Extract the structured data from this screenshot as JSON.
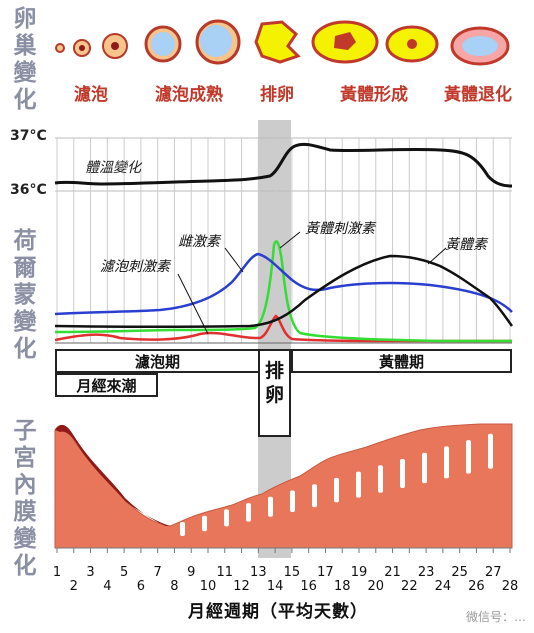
{
  "side_labels": {
    "ovary": "卵巢變化",
    "hormone": "荷爾蒙變化",
    "endometrium": "子宮內膜變化"
  },
  "ovary_stages": [
    "濾泡",
    "濾泡成熟",
    "排卵",
    "黃體形成",
    "黃體退化"
  ],
  "temperature": {
    "high_label": "37°C",
    "low_label": "36°C",
    "curve_label": "體溫變化"
  },
  "hormones": {
    "fsh_label": "濾泡刺激素",
    "estrogen_label": "雌激素",
    "lh_label": "黃體刺激素",
    "progesterone_label": "黃體素",
    "colors": {
      "fsh": "#e03030",
      "estrogen": "#2a3fcf",
      "lh": "#33dd33",
      "progesterone": "#111111"
    }
  },
  "phases": {
    "follicular": "濾泡期",
    "menstruation": "月經來潮",
    "ovulation": "排卵",
    "luteal": "黃體期"
  },
  "x_axis": {
    "ticks": [
      "1",
      "2",
      "3",
      "4",
      "5",
      "6",
      "7",
      "8",
      "9",
      "10",
      "11",
      "12",
      "13",
      "14",
      "15",
      "16",
      "17",
      "18",
      "19",
      "20",
      "21",
      "22",
      "23",
      "24",
      "25",
      "26",
      "27",
      "28"
    ],
    "title": "月經週期（平均天數）"
  },
  "colors": {
    "endometrium": "#e8765a",
    "menstrual": "#8e1a1a",
    "ovulation_band": "#cccccc",
    "stage_text": "#c0392b"
  },
  "watermark": "微信号：…"
}
